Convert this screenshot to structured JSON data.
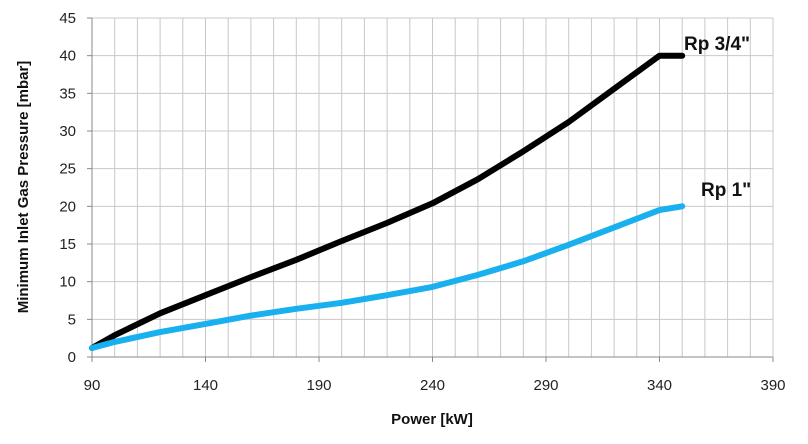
{
  "chart_data": {
    "type": "line",
    "title": "",
    "xlabel": "Power  [kW]",
    "ylabel": "Minimum Inlet Gas Pressure [mbar]",
    "xlim": [
      90,
      390
    ],
    "ylim": [
      0,
      45
    ],
    "x_ticks": [
      "90",
      "140",
      "190",
      "240",
      "290",
      "340",
      "390"
    ],
    "y_ticks": [
      "0",
      "5",
      "10",
      "15",
      "20",
      "25",
      "30",
      "35",
      "40",
      "45"
    ],
    "grid": true,
    "series": [
      {
        "name": "Rp 3/4\"",
        "color": "#000000",
        "x": [
          90,
          100,
          120,
          140,
          160,
          180,
          200,
          220,
          240,
          260,
          280,
          300,
          320,
          340,
          350
        ],
        "y": [
          1.2,
          2.9,
          5.8,
          8.2,
          10.6,
          12.9,
          15.4,
          17.8,
          20.4,
          23.6,
          27.3,
          31.2,
          35.6,
          40.0,
          40.0
        ]
      },
      {
        "name": "Rp 1\"",
        "color": "#18b0ee",
        "x": [
          90,
          100,
          120,
          140,
          160,
          180,
          200,
          220,
          240,
          260,
          280,
          300,
          320,
          340,
          350
        ],
        "y": [
          1.2,
          2.0,
          3.3,
          4.4,
          5.5,
          6.4,
          7.2,
          8.2,
          9.3,
          10.9,
          12.7,
          14.9,
          17.2,
          19.5,
          20.0
        ]
      }
    ]
  }
}
